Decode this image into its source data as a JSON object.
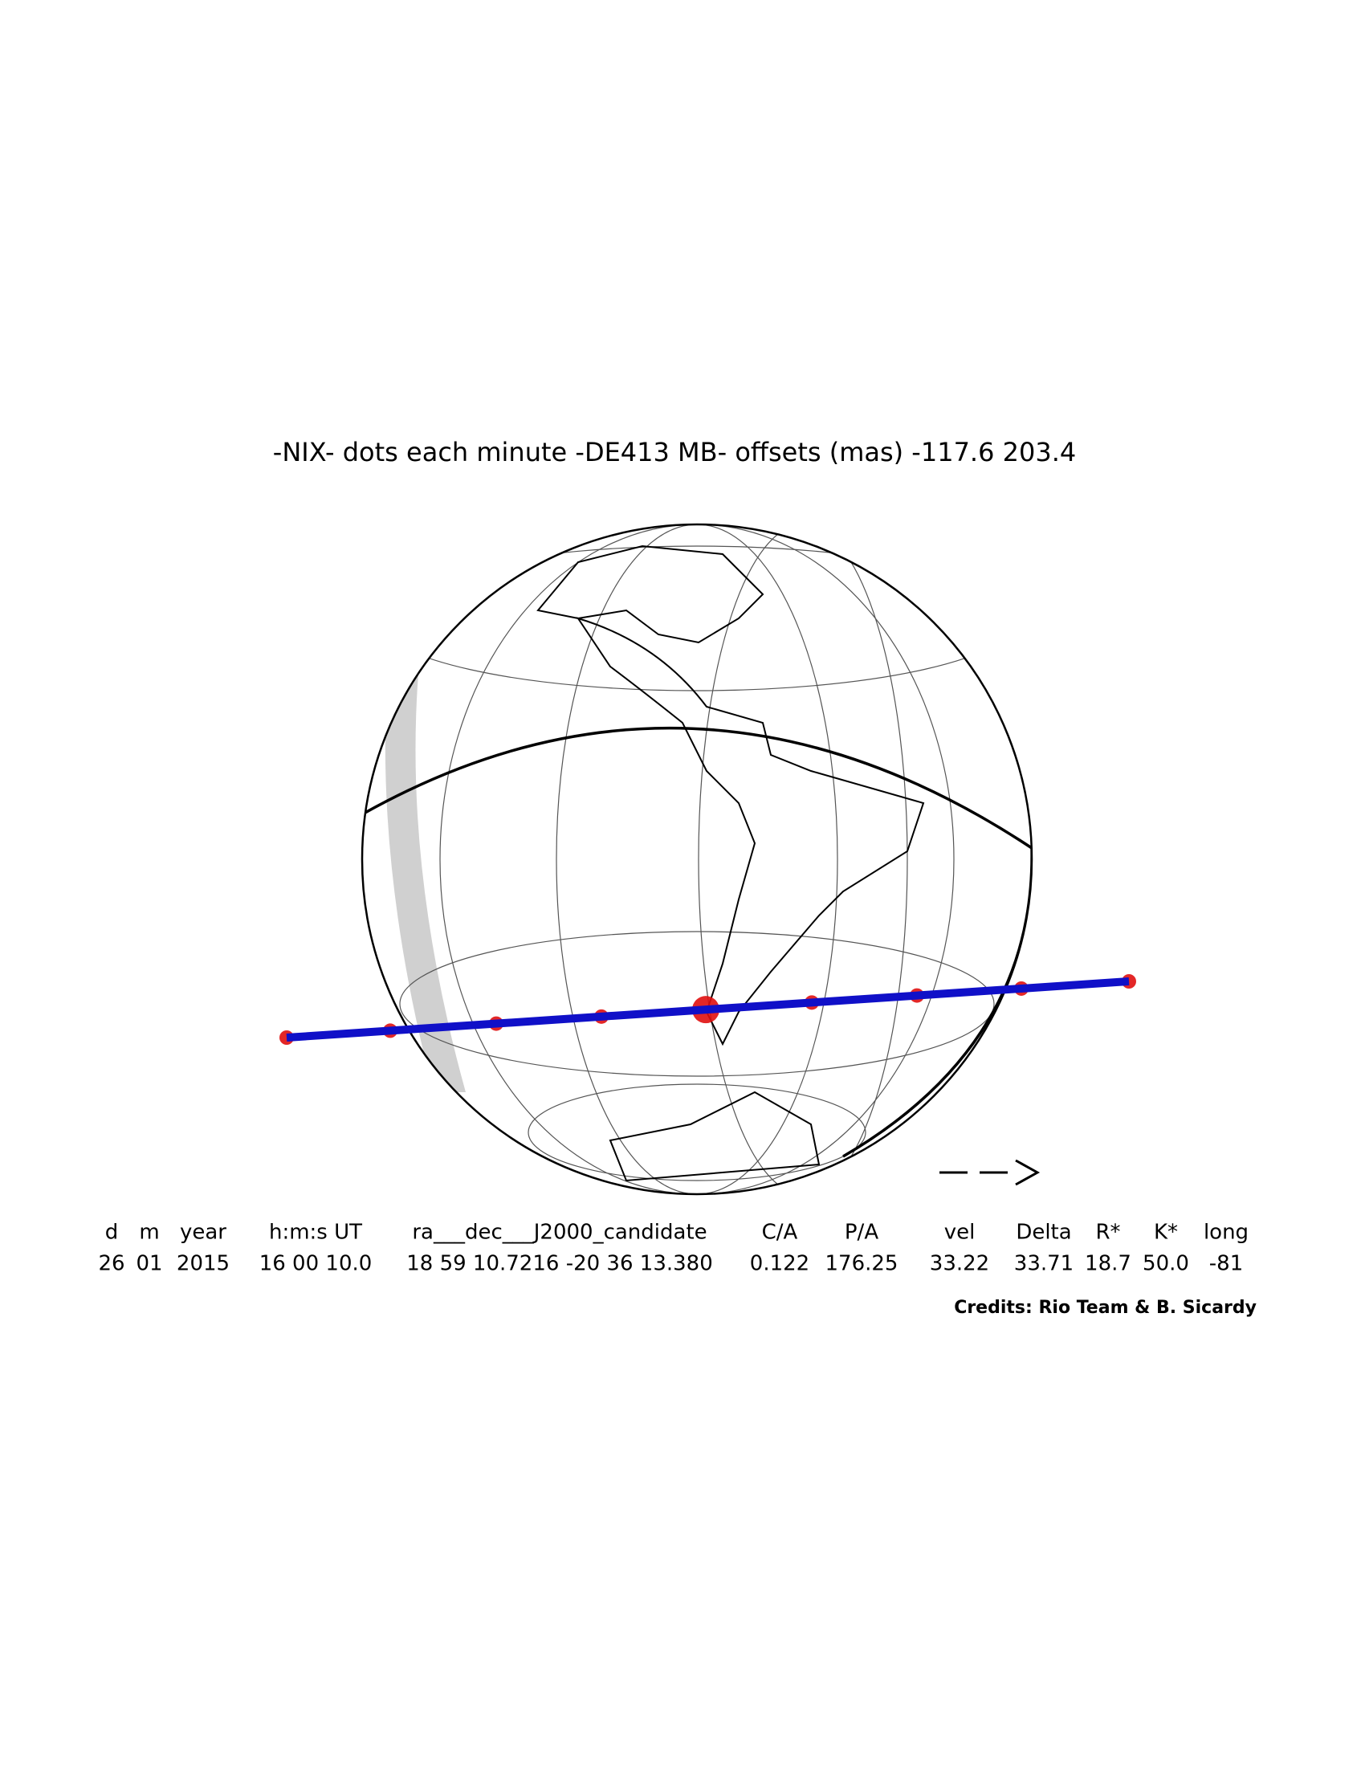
{
  "header": {
    "title": "-NIX- dots each minute -DE413 MB- offsets (mas) -117.6  203.4"
  },
  "table": {
    "columns": [
      "d",
      "m",
      "year",
      "h:m:s UT",
      "ra___dec___J2000_candidate",
      "C/A",
      "P/A",
      "vel",
      "Delta",
      "R*",
      "K*",
      "long"
    ],
    "values": [
      "26",
      "01",
      "2015",
      "16 00 10.0",
      "18 59 10.7216 -20 36 13.380",
      "0.122",
      "176.25",
      "33.22",
      "33.71",
      "18.7",
      "50.0",
      "-81"
    ]
  },
  "credits": "Credits: Rio Team & B. Sicardy"
}
